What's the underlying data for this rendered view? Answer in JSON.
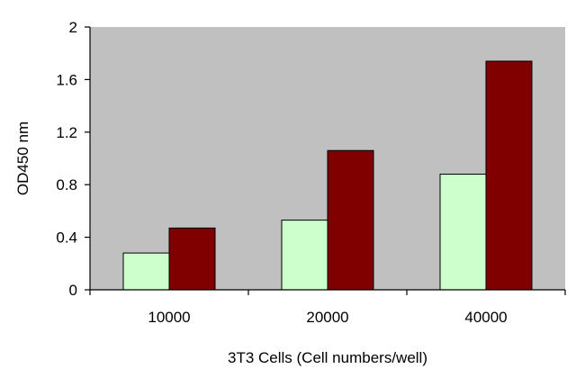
{
  "chart_data": {
    "type": "bar",
    "title": "",
    "xlabel": "3T3 Cells (Cell numbers/well)",
    "ylabel": "OD450 nm",
    "categories": [
      "10000",
      "20000",
      "40000"
    ],
    "series": [
      {
        "values": [
          0.28,
          0.53,
          0.88
        ]
      },
      {
        "values": [
          0.47,
          1.06,
          1.74
        ]
      }
    ],
    "ylim": [
      0,
      2
    ],
    "yticks": [
      0,
      0.4,
      0.8,
      1.2,
      1.6,
      2
    ],
    "ytick_labels": [
      "0",
      "0.4",
      "0.8",
      "1.2",
      "1.6",
      "2"
    ],
    "grid": false,
    "legend": "none",
    "colors": {
      "plot_background": "#c0c0c0",
      "series": [
        "#ccffcc",
        "#800000"
      ],
      "bar_outline": "#000000"
    }
  }
}
